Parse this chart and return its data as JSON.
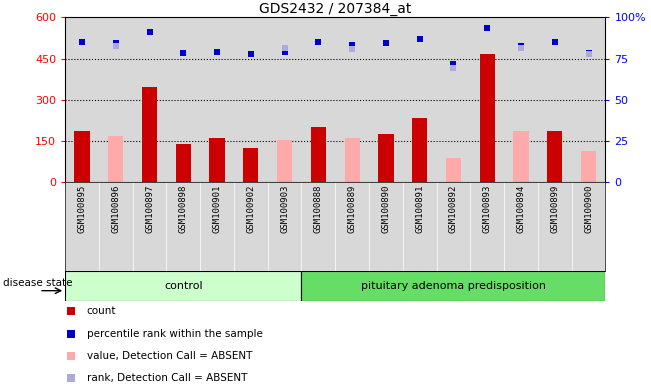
{
  "title": "GDS2432 / 207384_at",
  "samples": [
    "GSM100895",
    "GSM100896",
    "GSM100897",
    "GSM100898",
    "GSM100901",
    "GSM100902",
    "GSM100903",
    "GSM100888",
    "GSM100889",
    "GSM100890",
    "GSM100891",
    "GSM100892",
    "GSM100893",
    "GSM100894",
    "GSM100899",
    "GSM100900"
  ],
  "count_values": [
    185,
    null,
    345,
    140,
    160,
    125,
    null,
    200,
    null,
    175,
    235,
    null,
    465,
    null,
    185,
    null
  ],
  "value_absent": [
    null,
    170,
    null,
    null,
    null,
    null,
    155,
    null,
    160,
    null,
    null,
    90,
    null,
    185,
    null,
    115
  ],
  "rank_values": [
    510,
    505,
    545,
    470,
    475,
    465,
    475,
    510,
    500,
    505,
    520,
    430,
    560,
    495,
    510,
    470
  ],
  "rank_absent": [
    null,
    495,
    null,
    null,
    null,
    null,
    490,
    null,
    485,
    null,
    null,
    415,
    null,
    490,
    null,
    465
  ],
  "n_control": 7,
  "n_pituitary": 9,
  "ylim_left": [
    0,
    600
  ],
  "ylim_right": [
    0,
    100
  ],
  "yticks_left": [
    0,
    150,
    300,
    450,
    600
  ],
  "yticks_right": [
    0,
    25,
    50,
    75,
    100
  ],
  "color_count": "#cc0000",
  "color_absent_value": "#ffaaaa",
  "color_rank": "#0000cc",
  "color_rank_absent": "#aaaadd",
  "bg_plot": "#d8d8d8",
  "bg_control": "#ccffcc",
  "bg_pituitary": "#66dd66",
  "legend_items": [
    {
      "label": "count",
      "color": "#cc0000"
    },
    {
      "label": "percentile rank within the sample",
      "color": "#0000cc"
    },
    {
      "label": "value, Detection Call = ABSENT",
      "color": "#ffaaaa"
    },
    {
      "label": "rank, Detection Call = ABSENT",
      "color": "#aaaadd"
    }
  ]
}
